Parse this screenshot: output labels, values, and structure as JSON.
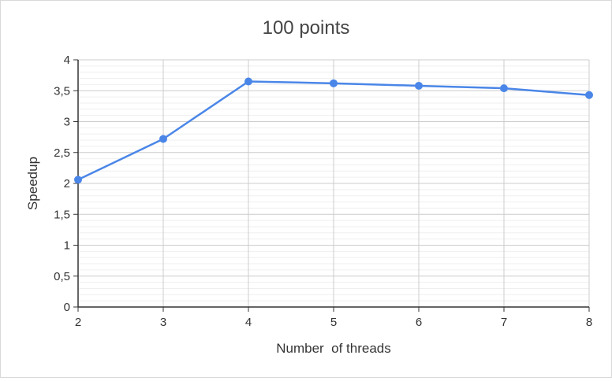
{
  "chart_data": {
    "type": "line",
    "title": "100 points",
    "xlabel": "Number  of threads",
    "ylabel": "Speedup",
    "x": [
      2,
      3,
      4,
      5,
      6,
      7,
      8
    ],
    "series": [
      {
        "values": [
          2.06,
          2.72,
          3.65,
          3.62,
          3.58,
          3.54,
          3.43
        ],
        "color": "#4a86e8"
      }
    ],
    "xlim": [
      2,
      8
    ],
    "ylim": [
      0,
      4
    ],
    "x_ticks": [
      "2",
      "3",
      "4",
      "5",
      "6",
      "7",
      "8"
    ],
    "y_ticks": [
      "0",
      "0,5",
      "1",
      "1,5",
      "2",
      "2,5",
      "3",
      "3,5",
      "4"
    ],
    "grid": true,
    "legend": "none"
  }
}
